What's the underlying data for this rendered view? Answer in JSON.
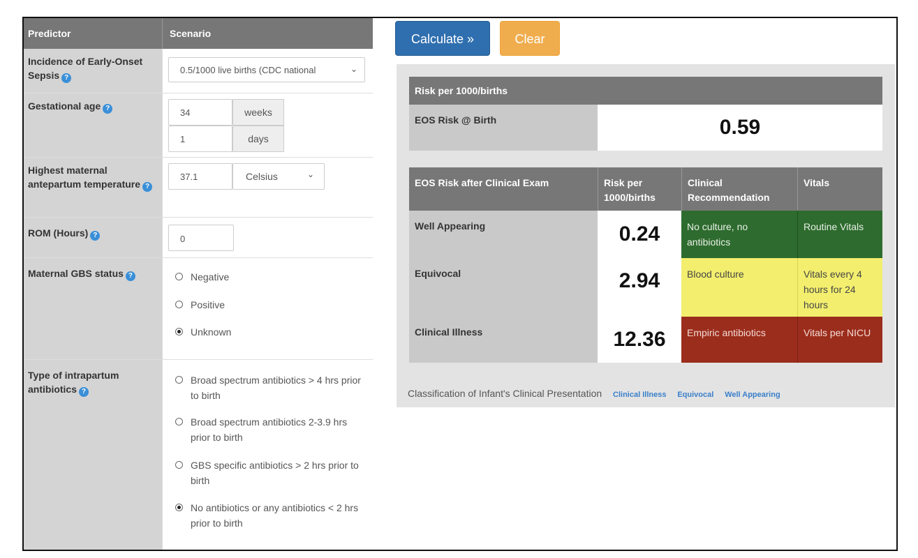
{
  "form": {
    "header": {
      "predictor": "Predictor",
      "scenario": "Scenario"
    },
    "incidence": {
      "label": "Incidence of Early-Onset Sepsis",
      "value": "0.5/1000 live births (CDC national"
    },
    "gestational_age": {
      "label": "Gestational age",
      "weeks_value": "34",
      "weeks_unit": "weeks",
      "days_value": "1",
      "days_unit": "days"
    },
    "temperature": {
      "label": "Highest maternal antepartum temperature",
      "value": "37.1",
      "unit": "Celsius"
    },
    "rom": {
      "label": "ROM (Hours)",
      "value": "0"
    },
    "gbs": {
      "label": "Maternal GBS status",
      "options": [
        "Negative",
        "Positive",
        "Unknown"
      ],
      "selected": "Unknown"
    },
    "antibiotics": {
      "label": "Type of intrapartum antibiotics",
      "options": [
        "Broad spectrum antibiotics > 4 hrs prior to birth",
        "Broad spectrum antibiotics 2-3.9 hrs prior to birth",
        "GBS specific antibiotics > 2 hrs prior to birth",
        "No antibiotics or any antibiotics < 2 hrs prior to birth"
      ],
      "selected": "No antibiotics or any antibiotics < 2 hrs prior to birth"
    }
  },
  "buttons": {
    "calculate": "Calculate »",
    "clear": "Clear"
  },
  "results": {
    "risk_header": "Risk per 1000/births",
    "birth_label": "EOS Risk @ Birth",
    "birth_value": "0.59",
    "exam_header": {
      "col1": "EOS Risk after Clinical Exam",
      "col2": "Risk per 1000/births",
      "col3": "Clinical Recommendation",
      "col4": "Vitals"
    },
    "rows": [
      {
        "label": "Well Appearing",
        "risk": "0.24",
        "recommendation": "No culture, no antibiotics",
        "vitals": "Routine Vitals",
        "color": "#2e6b2e"
      },
      {
        "label": "Equivocal",
        "risk": "2.94",
        "recommendation": "Blood culture",
        "vitals": "Vitals every 4 hours for 24 hours",
        "color": "#f3ee6e"
      },
      {
        "label": "Clinical Illness",
        "risk": "12.36",
        "recommendation": "Empiric antibiotics",
        "vitals": "Vitals per NICU",
        "color": "#9b2d1c"
      }
    ],
    "classification": {
      "text": "Classification of Infant's Clinical Presentation",
      "links": [
        "Clinical Illness",
        "Equivocal",
        "Well Appearing"
      ]
    }
  }
}
